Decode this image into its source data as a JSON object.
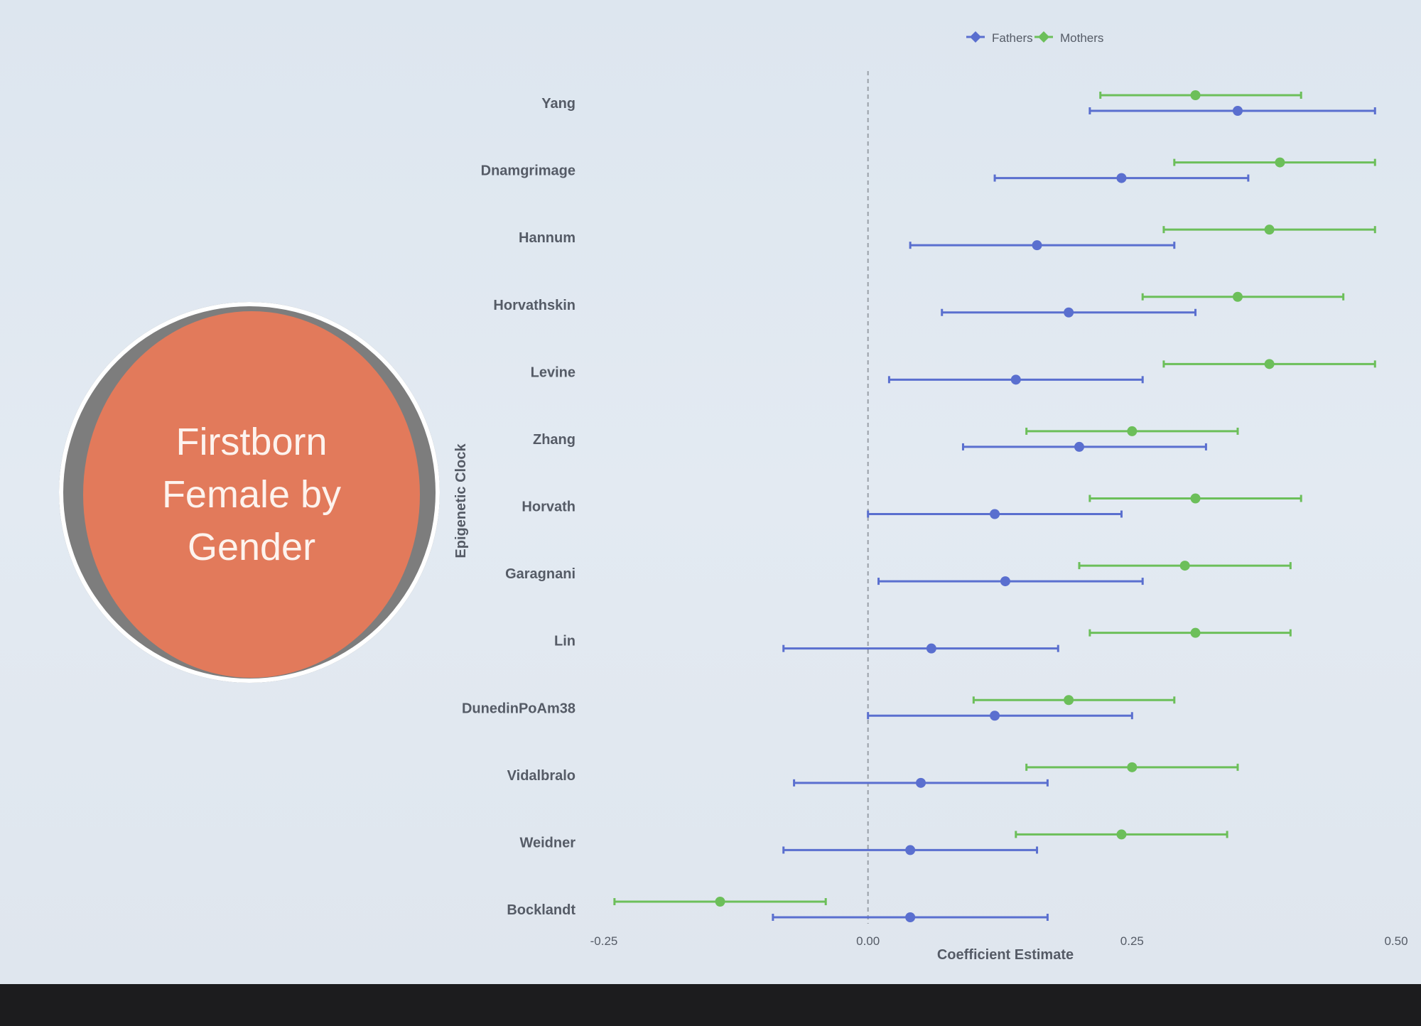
{
  "slide": {
    "title": "Firstborn Female by Gender"
  },
  "chart_data": {
    "type": "forest",
    "title": "",
    "xlabel": "Coefficient Estimate",
    "ylabel": "Epigenetic Clock",
    "xlim": [
      -0.25,
      0.5
    ],
    "xticks": [
      "-0.25",
      "0.00",
      "0.25",
      "0.50"
    ],
    "reference_line": 0,
    "legend": {
      "position": "top",
      "entries": [
        "Fathers",
        "Mothers"
      ]
    },
    "colors": {
      "Fathers": "#5a6fcf",
      "Mothers": "#6cbf5a"
    },
    "categories": [
      "Yang",
      "Dnamgrimage",
      "Hannum",
      "Horvathskin",
      "Levine",
      "Zhang",
      "Horvath",
      "Garagnani",
      "Lin",
      "DunedinPoAm38",
      "Vidalbralo",
      "Weidner",
      "Bocklandt"
    ],
    "series": [
      {
        "name": "Mothers",
        "estimate": [
          0.31,
          0.39,
          0.38,
          0.35,
          0.38,
          0.25,
          0.31,
          0.3,
          0.31,
          0.19,
          0.25,
          0.24,
          -0.14
        ],
        "lower": [
          0.22,
          0.29,
          0.28,
          0.26,
          0.28,
          0.15,
          0.21,
          0.2,
          0.21,
          0.1,
          0.15,
          0.14,
          -0.24
        ],
        "upper": [
          0.41,
          0.48,
          0.48,
          0.45,
          0.48,
          0.35,
          0.41,
          0.4,
          0.4,
          0.29,
          0.35,
          0.34,
          -0.04
        ]
      },
      {
        "name": "Fathers",
        "estimate": [
          0.35,
          0.24,
          0.16,
          0.19,
          0.14,
          0.2,
          0.12,
          0.13,
          0.06,
          0.12,
          0.05,
          0.04,
          0.04
        ],
        "lower": [
          0.21,
          0.12,
          0.04,
          0.07,
          0.02,
          0.09,
          0.0,
          0.01,
          -0.08,
          0.0,
          -0.07,
          -0.08,
          -0.09
        ],
        "upper": [
          0.48,
          0.36,
          0.29,
          0.31,
          0.26,
          0.32,
          0.24,
          0.26,
          0.18,
          0.25,
          0.17,
          0.16,
          0.17
        ]
      }
    ]
  }
}
